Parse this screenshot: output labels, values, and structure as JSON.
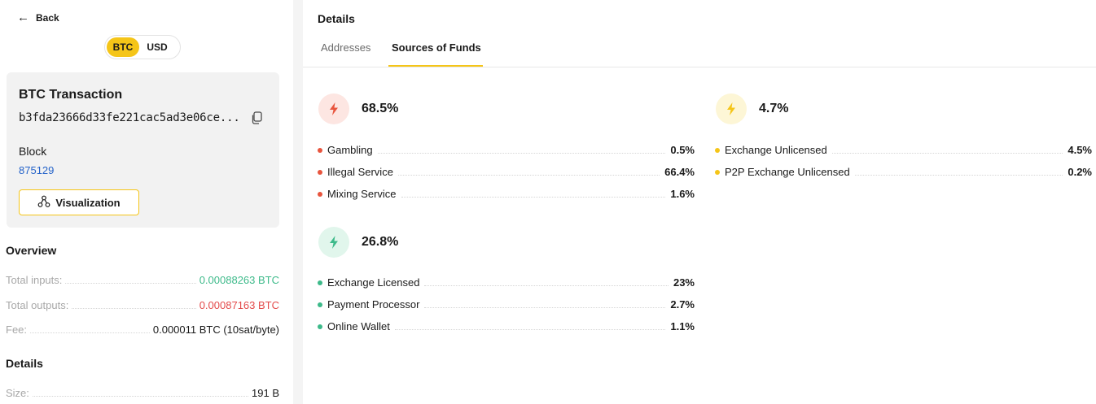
{
  "colors": {
    "accent": "#f5c518",
    "positive": "#3dba8a",
    "negative": "#e34a4a",
    "link": "#2563c9",
    "risk_high": "#e8553e"
  },
  "nav": {
    "back_label": "Back",
    "back_icon": "arrow-left-icon"
  },
  "currency_toggle": {
    "options": [
      "BTC",
      "USD"
    ],
    "selected": "BTC"
  },
  "transaction": {
    "title": "BTC Transaction",
    "hash": "b3fda23666d33fe221cac5ad3e06ce...",
    "copy_icon": "copy-icon",
    "block_label": "Block",
    "block_value": "875129",
    "visualization_label": "Visualization",
    "visualization_icon": "graph-nodes-icon"
  },
  "overview": {
    "title": "Overview",
    "rows": [
      {
        "label": "Total inputs:",
        "value": "0.00088263 BTC",
        "tone": "positive"
      },
      {
        "label": "Total outputs:",
        "value": "0.00087163 BTC",
        "tone": "negative"
      },
      {
        "label": "Fee:",
        "value": "0.000011 BTC (10sat/byte)",
        "tone": "neutral"
      }
    ]
  },
  "details_left": {
    "title": "Details",
    "rows": [
      {
        "label": "Size:",
        "value": "191 B"
      }
    ]
  },
  "details_panel": {
    "title": "Details",
    "tabs": [
      {
        "label": "Addresses",
        "active": false
      },
      {
        "label": "Sources of Funds",
        "active": true
      }
    ],
    "groups": [
      {
        "percent": "68.5%",
        "risk": "high",
        "icon": "lightning-icon",
        "items": [
          {
            "name": "Gambling",
            "value": "0.5%"
          },
          {
            "name": "Illegal Service",
            "value": "66.4%"
          },
          {
            "name": "Mixing Service",
            "value": "1.6%"
          }
        ]
      },
      {
        "percent": "4.7%",
        "risk": "medium",
        "icon": "lightning-icon",
        "items": [
          {
            "name": "Exchange Unlicensed",
            "value": "4.5%"
          },
          {
            "name": "P2P Exchange Unlicensed",
            "value": "0.2%"
          }
        ]
      },
      {
        "percent": "26.8%",
        "risk": "low",
        "icon": "lightning-icon",
        "items": [
          {
            "name": "Exchange Licensed",
            "value": "23%"
          },
          {
            "name": "Payment Processor",
            "value": "2.7%"
          },
          {
            "name": "Online Wallet",
            "value": "1.1%"
          }
        ]
      }
    ]
  }
}
